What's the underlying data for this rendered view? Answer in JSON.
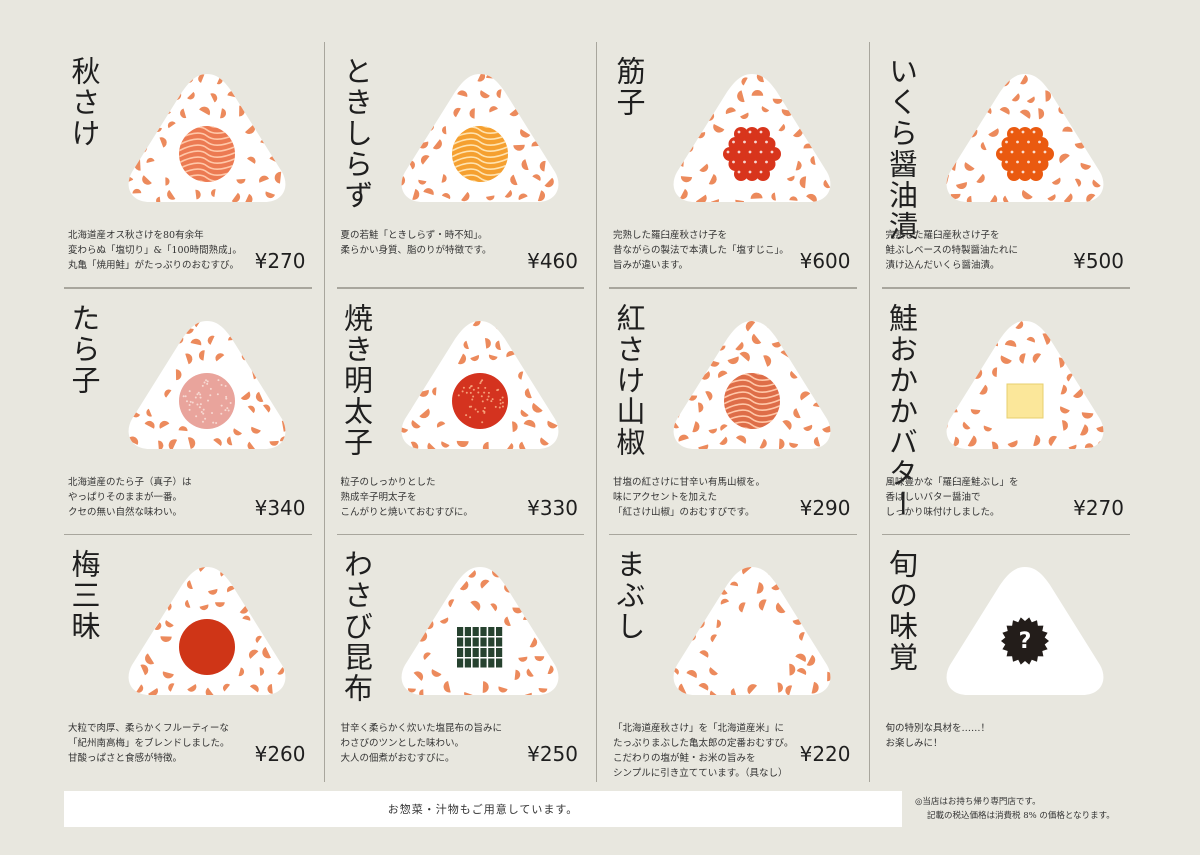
{
  "colors": {
    "background": "#e8e7df",
    "rice": "#ffffff",
    "flake": "#ec8a5c",
    "divider": "#a8a69d"
  },
  "items": [
    {
      "name": "秋さけ",
      "filling": "salmon",
      "fill_color": "#ec7a52",
      "line_color": "#ffc7a8",
      "desc": "北海道産オス秋さけを80有余年\n変わらぬ「塩切り」&「100時間熟成」。\n丸亀「焼用鮭」がたっぷりのおむすび。",
      "price": "¥270"
    },
    {
      "name": "ときしらず",
      "filling": "salmon",
      "fill_color": "#f5a030",
      "line_color": "#ffe3b0",
      "desc": "夏の若鮭「ときしらず・時不知」。\n柔らかい身質、脂のりが特徴です。",
      "price": "¥460"
    },
    {
      "name": "筋子",
      "filling": "roe",
      "fill_color": "#d8351c",
      "line_color": "#ffffff",
      "desc": "完熟した羅臼産秋さけ子を\n昔ながらの製法で本漬した「塩すじこ」。\n旨みが違います。",
      "price": "¥600"
    },
    {
      "name": "いくら醤油漬",
      "filling": "roe",
      "fill_color": "#ea5a10",
      "line_color": "#ffffff",
      "desc": "完熟した羅臼産秋さけ子を\n鮭ぶしベースの特製醤油たれに\n漬け込んだいくら醤油漬。",
      "price": "¥500"
    },
    {
      "name": "たら子",
      "filling": "dotted",
      "fill_color": "#e9a49c",
      "line_color": "#f7d9d2",
      "desc": "北海道産のたら子（真子）は\nやっぱりそのままが一番。\nクセの無い自然な味わい。",
      "price": "¥340"
    },
    {
      "name": "焼き明太子",
      "filling": "dotted",
      "fill_color": "#d4331f",
      "line_color": "#f5a07a",
      "desc": "粒子のしっかりとした\n熟成辛子明太子を\nこんがりと焼いておむすびに。",
      "price": "¥330"
    },
    {
      "name": "紅さけ山椒",
      "filling": "salmon",
      "fill_color": "#de6d48",
      "line_color": "#ffc7a8",
      "desc": "甘塩の紅さけに甘辛い有馬山椒を。\n味にアクセントを加えた\n「紅さけ山椒」のおむすびです。",
      "price": "¥290"
    },
    {
      "name": "鮭おかかバター",
      "filling": "butter",
      "fill_color": "#fbe79a",
      "line_color": "#e7cf6f",
      "desc": "風味豊かな「羅臼産鮭ぶし」を\n香ばしいバター醤油で\nしっかり味付けしました。",
      "price": "¥270"
    },
    {
      "name": "梅三昧",
      "filling": "plum",
      "fill_color": "#cf3517",
      "line_color": "#cf3517",
      "desc": "大粒で肉厚、柔らかくフルーティーな\n「紀州南高梅」をブレンドしました。\n甘酸っぱさと食感が特徴。",
      "price": "¥260"
    },
    {
      "name": "わさび昆布",
      "filling": "kombu",
      "fill_color": "#26422f",
      "line_color": "#ffffff",
      "desc": "甘辛く柔らかく炊いた塩昆布の旨みに\nわさびのツンとした味わい。\n大人の佃煮がおむすびに。",
      "price": "¥250"
    },
    {
      "name": "まぶし",
      "filling": "none",
      "fill_color": "",
      "line_color": "",
      "desc": "「北海道産秋さけ」を「北海道産米」に\nたっぷりまぶした亀太郎の定番おむすび。\nこだわりの塩が鮭・お米の旨みを\nシンプルに引き立てています。（具なし）",
      "price": "¥220"
    },
    {
      "name": "旬の味覚",
      "filling": "mystery",
      "fill_color": "#231d1a",
      "line_color": "#ffffff",
      "desc": "旬の特別な具材を……！\nお楽しみに！",
      "price": ""
    }
  ],
  "footer": {
    "banner": "お惣菜・汁物もご用意しています。",
    "note_line1": "◎当店はお持ち帰り専門店です。",
    "note_line2": "記載の税込価格は消費税 8% の価格となります。"
  }
}
